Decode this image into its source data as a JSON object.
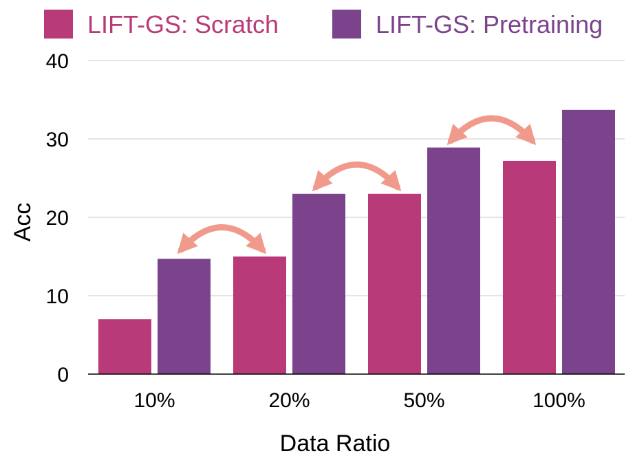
{
  "chart_data": {
    "type": "bar",
    "categories": [
      "10%",
      "20%",
      "50%",
      "100%"
    ],
    "series": [
      {
        "name": "LIFT-GS: Scratch",
        "values": [
          7.0,
          15.0,
          23.0,
          27.2
        ],
        "color": "#b93a78"
      },
      {
        "name": "LIFT-GS: Pretraining",
        "values": [
          14.7,
          23.0,
          28.9,
          33.7
        ],
        "color": "#7b438c"
      }
    ],
    "title": "",
    "xlabel": "Data Ratio",
    "ylabel": "Acc",
    "ylim": [
      0,
      40
    ],
    "yticks": [
      "0",
      "10",
      "20",
      "30",
      "40"
    ],
    "grid": true,
    "legend_position": "top",
    "annotation_color": "#f09a8c",
    "annotations": [
      {
        "type": "double-arrow",
        "from": {
          "category": "10%",
          "series": "LIFT-GS: Pretraining"
        },
        "to": {
          "category": "20%",
          "series": "LIFT-GS: Scratch"
        }
      },
      {
        "type": "double-arrow",
        "from": {
          "category": "20%",
          "series": "LIFT-GS: Pretraining"
        },
        "to": {
          "category": "50%",
          "series": "LIFT-GS: Scratch"
        }
      },
      {
        "type": "double-arrow",
        "from": {
          "category": "50%",
          "series": "LIFT-GS: Pretraining"
        },
        "to": {
          "category": "100%",
          "series": "LIFT-GS: Scratch"
        }
      }
    ]
  }
}
